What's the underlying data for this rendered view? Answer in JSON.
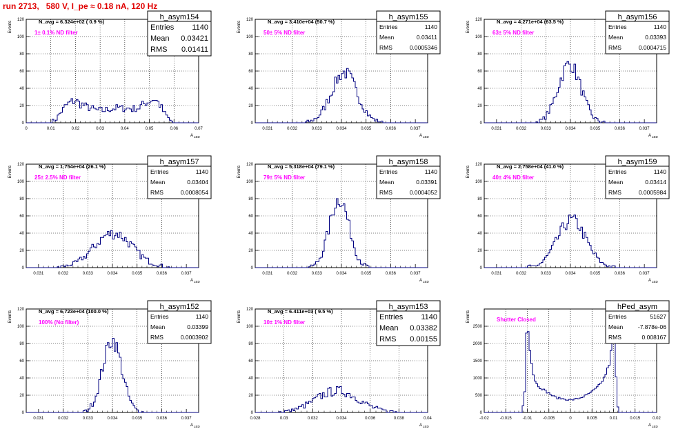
{
  "page": {
    "title": "run 2713,   580 V, I_pe ≈ 0.18 nA, 120 Hz"
  },
  "chart_data": [
    {
      "type": "histogram",
      "name": "h_asym154",
      "nav_label": "N_avg = 6.324e+02 ( 0.9 %)",
      "filter_label": "1± 0.1% ND filter",
      "stats": {
        "entries": "1140",
        "mean": "0.03421",
        "rms": "0.01411"
      },
      "ylabel": "Events",
      "xlabel": "A",
      "xlabel_sub": "LED",
      "xlim": [
        0,
        0.07
      ],
      "ylim": [
        0,
        120
      ],
      "xticks": [
        "0",
        "0.01",
        "0.02",
        "0.03",
        "0.04",
        "0.05",
        "0.06",
        "0.07"
      ],
      "yticks": [
        "0",
        "20",
        "40",
        "60",
        "80",
        "100",
        "120"
      ],
      "profile": [
        [
          0.009,
          0
        ],
        [
          0.012,
          3
        ],
        [
          0.014,
          12
        ],
        [
          0.016,
          20
        ],
        [
          0.018,
          24
        ],
        [
          0.02,
          26
        ],
        [
          0.022,
          22
        ],
        [
          0.025,
          18
        ],
        [
          0.028,
          15
        ],
        [
          0.031,
          14
        ],
        [
          0.034,
          16
        ],
        [
          0.037,
          17
        ],
        [
          0.04,
          17
        ],
        [
          0.043,
          16
        ],
        [
          0.046,
          18
        ],
        [
          0.049,
          24
        ],
        [
          0.052,
          28
        ],
        [
          0.054,
          22
        ],
        [
          0.056,
          12
        ],
        [
          0.058,
          4
        ],
        [
          0.06,
          0
        ]
      ]
    },
    {
      "type": "histogram",
      "name": "h_asym155",
      "nav_label": "N_avg = 3.410e+04 (50.7 %)",
      "filter_label": "50± 5% ND filter",
      "stats": {
        "entries": "1140",
        "mean": "0.03411",
        "rms": "0.0005346"
      },
      "ylabel": "Events",
      "xlabel": "A",
      "xlabel_sub": "LED",
      "xlim": [
        0.0305,
        0.0375
      ],
      "ylim": [
        0,
        120
      ],
      "xticks": [
        "0.031",
        "0.032",
        "0.033",
        "0.034",
        "0.035",
        "0.036",
        "0.037"
      ],
      "yticks": [
        "0",
        "20",
        "40",
        "60",
        "80",
        "100",
        "120"
      ],
      "gauss": {
        "mean": 0.03411,
        "sigma": 0.00052,
        "amp": 58
      }
    },
    {
      "type": "histogram",
      "name": "h_asym156",
      "nav_label": "N_avg = 4.271e+04 (63.5 %)",
      "filter_label": "63± 5% ND filter",
      "stats": {
        "entries": "1140",
        "mean": "0.03393",
        "rms": "0.0004715"
      },
      "ylabel": "Events",
      "xlabel": "A",
      "xlabel_sub": "LED",
      "xlim": [
        0.0305,
        0.0375
      ],
      "ylim": [
        0,
        120
      ],
      "xticks": [
        "0.031",
        "0.032",
        "0.033",
        "0.034",
        "0.035",
        "0.036",
        "0.037"
      ],
      "yticks": [
        "0",
        "20",
        "40",
        "60",
        "80",
        "100",
        "120"
      ],
      "gauss": {
        "mean": 0.03396,
        "sigma": 0.00046,
        "amp": 68
      }
    },
    {
      "type": "histogram",
      "name": "h_asym157",
      "nav_label": "N_avg = 1.754e+04 (26.1 %)",
      "filter_label": "25± 2.5% ND filter",
      "stats": {
        "entries": "1140",
        "mean": "0.03404",
        "rms": "0.0008054"
      },
      "ylabel": "Events",
      "xlabel": "A",
      "xlabel_sub": "LED",
      "xlim": [
        0.0305,
        0.0375
      ],
      "ylim": [
        0,
        120
      ],
      "xticks": [
        "0.031",
        "0.032",
        "0.033",
        "0.034",
        "0.035",
        "0.036",
        "0.037"
      ],
      "yticks": [
        "0",
        "20",
        "40",
        "60",
        "80",
        "100",
        "120"
      ],
      "gauss": {
        "mean": 0.03404,
        "sigma": 0.00078,
        "amp": 40
      }
    },
    {
      "type": "histogram",
      "name": "h_asym158",
      "nav_label": "N_avg = 5.318e+04 (79.1 %)",
      "filter_label": "79± 5% ND filter",
      "stats": {
        "entries": "1140",
        "mean": "0.03391",
        "rms": "0.0004052"
      },
      "ylabel": "Events",
      "xlabel": "A",
      "xlabel_sub": "LED",
      "xlim": [
        0.0305,
        0.0375
      ],
      "ylim": [
        0,
        120
      ],
      "xticks": [
        "0.031",
        "0.032",
        "0.033",
        "0.034",
        "0.035",
        "0.036",
        "0.037"
      ],
      "yticks": [
        "0",
        "20",
        "40",
        "60",
        "80",
        "100",
        "120"
      ],
      "gauss": {
        "mean": 0.03391,
        "sigma": 0.0004,
        "amp": 80
      }
    },
    {
      "type": "histogram",
      "name": "h_asym159",
      "nav_label": "N_avg = 2.758e+04 (41.0 %)",
      "filter_label": "40± 4% ND filter",
      "stats": {
        "entries": "1140",
        "mean": "0.03414",
        "rms": "0.0005984"
      },
      "ylabel": "Events",
      "xlabel": "A",
      "xlabel_sub": "LED",
      "xlim": [
        0.0305,
        0.0375
      ],
      "ylim": [
        0,
        120
      ],
      "xticks": [
        "0.031",
        "0.032",
        "0.033",
        "0.034",
        "0.035",
        "0.036",
        "0.037"
      ],
      "yticks": [
        "0",
        "20",
        "40",
        "60",
        "80",
        "100",
        "120"
      ],
      "gauss": {
        "mean": 0.03405,
        "sigma": 0.00058,
        "amp": 55
      }
    },
    {
      "type": "histogram",
      "name": "h_asym152",
      "nav_label": "N_avg = 6.723e+04 (100.0 %)",
      "filter_label": "100% (No filter)",
      "stats": {
        "entries": "1140",
        "mean": "0.03399",
        "rms": "0.0003902"
      },
      "ylabel": "Events",
      "xlabel": "A",
      "xlabel_sub": "LED",
      "xlim": [
        0.0305,
        0.0375
      ],
      "ylim": [
        0,
        120
      ],
      "xticks": [
        "0.031",
        "0.032",
        "0.033",
        "0.034",
        "0.035",
        "0.036",
        "0.037"
      ],
      "yticks": [
        "0",
        "20",
        "40",
        "60",
        "80",
        "100",
        "120"
      ],
      "gauss": {
        "mean": 0.03399,
        "sigma": 0.00039,
        "amp": 84
      }
    },
    {
      "type": "histogram",
      "name": "h_asym153",
      "nav_label": "N_avg = 6.411e+03 ( 9.5 %)",
      "filter_label": "10± 1% ND filter",
      "stats": {
        "entries": "1140",
        "mean": "0.03382",
        "rms": "0.00155"
      },
      "ylabel": "Events",
      "xlabel": "A",
      "xlabel_sub": "LED",
      "xlim": [
        0.028,
        0.04
      ],
      "ylim": [
        0,
        120
      ],
      "xticks": [
        "0.028",
        "0.03",
        "0.032",
        "0.034",
        "0.036",
        "0.038",
        "0.04"
      ],
      "yticks": [
        "0",
        "20",
        "40",
        "60",
        "80",
        "100",
        "120"
      ],
      "gauss": {
        "mean": 0.0337,
        "sigma": 0.0015,
        "amp": 25
      }
    },
    {
      "type": "histogram",
      "name": "hPed_asym",
      "nav_label": "",
      "filter_label": "Shutter Closed",
      "stats": {
        "entries": "51627",
        "mean": "-7.878e-06",
        "rms": "0.008167"
      },
      "ylabel": "Events",
      "xlabel": "A",
      "xlabel_sub": "LED",
      "xlim": [
        -0.02,
        0.02
      ],
      "ylim": [
        0,
        3000
      ],
      "xticks": [
        "-0.02",
        "-0.015",
        "-0.01",
        "-0.005",
        "0",
        "0.005",
        "0.01",
        "0.015",
        "0.02"
      ],
      "yticks": [
        "0",
        "500",
        "1000",
        "1500",
        "2000",
        "2500"
      ],
      "profile": [
        [
          -0.0112,
          0
        ],
        [
          -0.0106,
          600
        ],
        [
          -0.0102,
          2350
        ],
        [
          -0.01,
          2800
        ],
        [
          -0.0097,
          2200
        ],
        [
          -0.0092,
          1600
        ],
        [
          -0.0086,
          1100
        ],
        [
          -0.008,
          850
        ],
        [
          -0.007,
          720
        ],
        [
          -0.006,
          640
        ],
        [
          -0.005,
          560
        ],
        [
          -0.004,
          470
        ],
        [
          -0.003,
          420
        ],
        [
          -0.002,
          400
        ],
        [
          -0.001,
          380
        ],
        [
          0,
          360
        ],
        [
          0.001,
          380
        ],
        [
          0.002,
          410
        ],
        [
          0.003,
          460
        ],
        [
          0.004,
          520
        ],
        [
          0.005,
          600
        ],
        [
          0.006,
          700
        ],
        [
          0.007,
          830
        ],
        [
          0.008,
          1050
        ],
        [
          0.009,
          1400
        ],
        [
          0.0095,
          1850
        ],
        [
          0.0099,
          2500
        ],
        [
          0.0102,
          2700
        ],
        [
          0.0105,
          1400
        ],
        [
          0.0108,
          300
        ],
        [
          0.0112,
          0
        ]
      ]
    }
  ]
}
